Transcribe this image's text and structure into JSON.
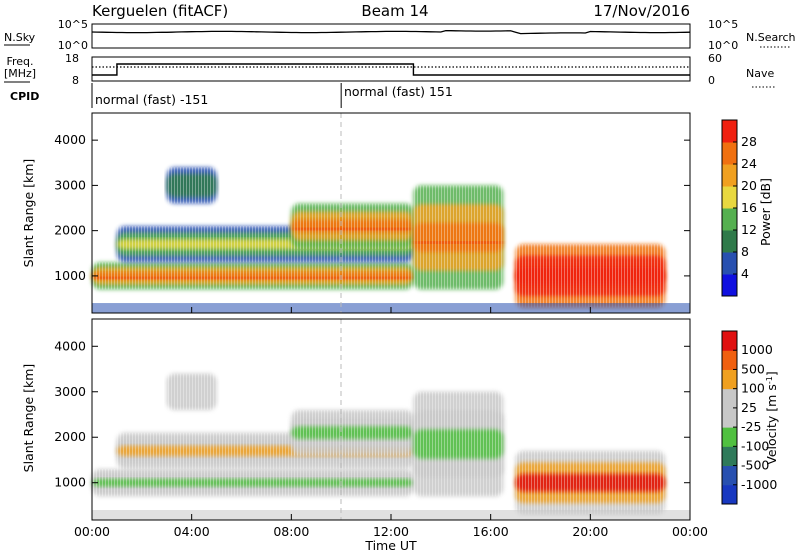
{
  "header": {
    "station": "Kerguelen (fitACF)",
    "beam": "Beam 14",
    "date": "17/Nov/2016"
  },
  "noise_panel": {
    "left_label": "N.Sky",
    "right_label": "N.Search",
    "left_ticks": [
      "10^5",
      "10^0"
    ],
    "right_ticks": [
      "10^5",
      "10^0"
    ]
  },
  "freq_panel": {
    "left_label": "Freq.",
    "left_unit": "[MHz]",
    "right_label": "Nave",
    "left_ticks": [
      "18",
      "8"
    ],
    "right_ticks": [
      "60",
      "0"
    ]
  },
  "cpid": {
    "label": "CPID",
    "segments": [
      {
        "text": "normal (fast) -151",
        "start_hour": 0
      },
      {
        "text": "normal (fast) 151",
        "start_hour": 10
      }
    ]
  },
  "colors": {
    "power_scale": [
      "#1010e0",
      "#2850b0",
      "#2f7a4a",
      "#55b050",
      "#e8d840",
      "#f0a020",
      "#f07010",
      "#f02010"
    ],
    "velocity_scale": [
      "#e01010",
      "#f06010",
      "#f0a020",
      "#c8c8c8",
      "#c8c8c8",
      "#50c040",
      "#2f7a5a",
      "#2850b0",
      "#1838c0"
    ],
    "gray": "#c8c8c8"
  },
  "chart_data": [
    {
      "type": "heatmap",
      "name": "Power",
      "xlabel": "",
      "ylabel": "Slant Range [km]",
      "xlim": [
        0,
        24
      ],
      "ylim": [
        180,
        4600
      ],
      "yticks": [
        "1000",
        "2000",
        "3000",
        "4000"
      ],
      "ytick_values": [
        1000,
        2000,
        3000,
        4000
      ],
      "colorbar": {
        "label": "Power [dB]",
        "ticks": [
          "4",
          "8",
          "12",
          "16",
          "20",
          "24",
          "28"
        ],
        "range": [
          0,
          32
        ]
      },
      "echo_bands": [
        {
          "start_hour": 0.0,
          "end_hour": 12.9,
          "range_km": [
            700,
            1300
          ],
          "level": "strong"
        },
        {
          "start_hour": 1.0,
          "end_hour": 12.9,
          "range_km": [
            1300,
            2100
          ],
          "level": "medium"
        },
        {
          "start_hour": 3.0,
          "end_hour": 5.0,
          "range_km": [
            2600,
            3400
          ],
          "level": "weak"
        },
        {
          "start_hour": 8.0,
          "end_hour": 12.9,
          "range_km": [
            1600,
            2600
          ],
          "level": "strong"
        },
        {
          "start_hour": 12.9,
          "end_hour": 16.5,
          "range_km": [
            700,
            3000
          ],
          "level": "strong"
        },
        {
          "start_hour": 17.0,
          "end_hour": 23.0,
          "range_km": [
            300,
            1700
          ],
          "level": "very strong"
        }
      ]
    },
    {
      "type": "heatmap",
      "name": "Velocity",
      "xlabel": "Time UT",
      "ylabel": "Slant Range [km]",
      "xlim": [
        0,
        24
      ],
      "ylim": [
        180,
        4600
      ],
      "xticks": [
        "00:00",
        "04:00",
        "08:00",
        "12:00",
        "16:00",
        "20:00",
        "00:00"
      ],
      "xtick_values": [
        0,
        4,
        8,
        12,
        16,
        20,
        24
      ],
      "yticks": [
        "1000",
        "2000",
        "3000",
        "4000"
      ],
      "ytick_values": [
        1000,
        2000,
        3000,
        4000
      ],
      "colorbar": {
        "label": "Velocity [m s^-1]",
        "ticks": [
          "1000",
          "500",
          "100",
          "25",
          "-25",
          "-100",
          "-500",
          "-1000"
        ],
        "range": [
          -1000,
          1000
        ]
      }
    }
  ]
}
